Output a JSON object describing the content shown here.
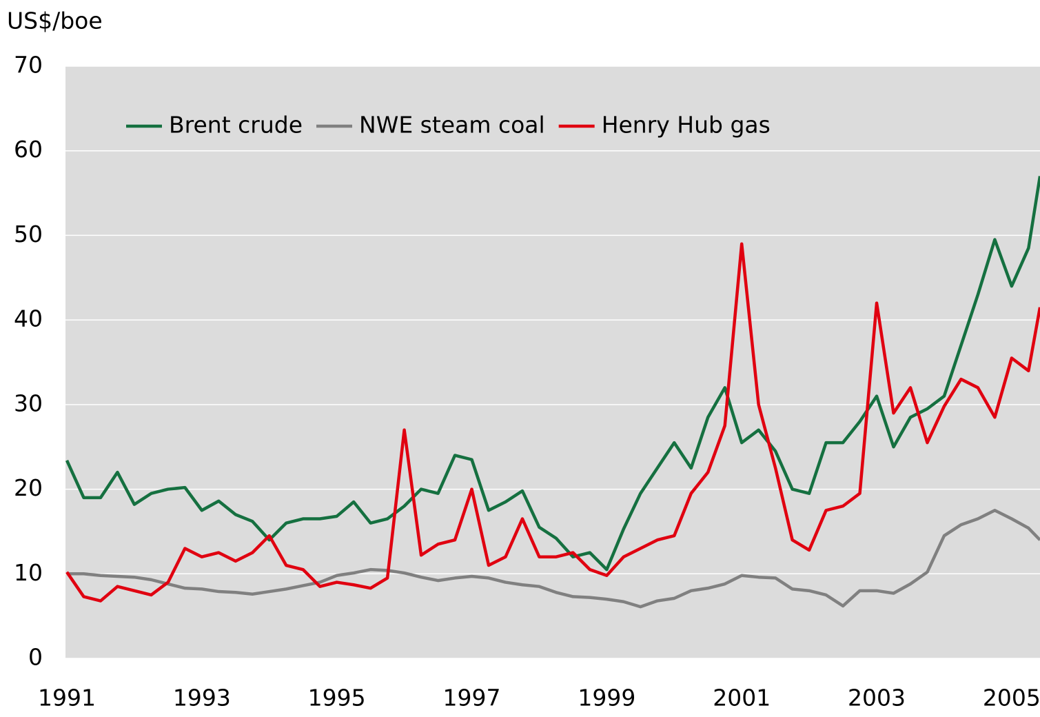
{
  "chart_data": {
    "type": "line",
    "y_label": "US$/boe",
    "x": [
      1991,
      1991.25,
      1991.5,
      1991.75,
      1992,
      1992.25,
      1992.5,
      1992.75,
      1993,
      1993.25,
      1993.5,
      1993.75,
      1994,
      1994.25,
      1994.5,
      1994.75,
      1995,
      1995.25,
      1995.5,
      1995.75,
      1996,
      1996.25,
      1996.5,
      1996.75,
      1997,
      1997.25,
      1997.5,
      1997.75,
      1998,
      1998.25,
      1998.5,
      1998.75,
      1999,
      1999.25,
      1999.5,
      1999.75,
      2000,
      2000.25,
      2000.5,
      2000.75,
      2001,
      2001.25,
      2001.5,
      2001.75,
      2002,
      2002.25,
      2002.5,
      2002.75,
      2003,
      2003.25,
      2003.5,
      2003.75,
      2004,
      2004.25,
      2004.5,
      2004.75,
      2005,
      2005.25,
      2005.42
    ],
    "series": [
      {
        "name": "Brent crude",
        "color": "#157040",
        "values": [
          23.4,
          19,
          19,
          22,
          18.2,
          19.5,
          20,
          20.2,
          17.5,
          18.6,
          17,
          16.2,
          14,
          16,
          16.5,
          16.5,
          16.8,
          18.5,
          16,
          16.5,
          18,
          20,
          19.5,
          24,
          23.5,
          17.5,
          18.5,
          19.8,
          15.5,
          14.2,
          12,
          12.5,
          10.5,
          15.3,
          19.5,
          22.5,
          25.5,
          22.5,
          28.5,
          32,
          25.5,
          27,
          24.5,
          20,
          19.5,
          25.5,
          25.5,
          28,
          31,
          25,
          28.5,
          29.5,
          31,
          37,
          43,
          49.5,
          44,
          48.5,
          57
        ]
      },
      {
        "name": "NWE steam coal",
        "color": "#808080",
        "values": [
          10,
          10,
          9.8,
          9.7,
          9.6,
          9.3,
          8.8,
          8.3,
          8.2,
          7.9,
          7.8,
          7.6,
          7.9,
          8.2,
          8.6,
          9,
          9.8,
          10.1,
          10.5,
          10.4,
          10.1,
          9.6,
          9.2,
          9.5,
          9.7,
          9.5,
          9,
          8.7,
          8.5,
          7.8,
          7.3,
          7.2,
          7,
          6.7,
          6.1,
          6.8,
          7.1,
          8,
          8.3,
          8.8,
          9.8,
          9.6,
          9.5,
          8.2,
          8,
          7.5,
          6.2,
          8,
          8,
          7.7,
          8.8,
          10.2,
          14.5,
          15.8,
          16.5,
          17.5,
          16.5,
          15.4,
          14
        ]
      },
      {
        "name": "Henry Hub gas",
        "color": "#e00010",
        "values": [
          10.2,
          7.3,
          6.8,
          8.5,
          8,
          7.5,
          9,
          13,
          12,
          12.5,
          11.5,
          12.5,
          14.5,
          11,
          10.5,
          8.5,
          9,
          8.7,
          8.3,
          9.5,
          27,
          12.2,
          13.5,
          14,
          20,
          11,
          12,
          16.5,
          12,
          12,
          12.5,
          10.5,
          9.8,
          12,
          13,
          14,
          14.5,
          19.5,
          22,
          27.5,
          49,
          30,
          22.5,
          14,
          12.8,
          17.5,
          18,
          19.5,
          42,
          29,
          32,
          25.5,
          29.8,
          33,
          32,
          28.5,
          35.5,
          34,
          41.5
        ]
      }
    ],
    "xlim": [
      1991,
      2005.42
    ],
    "xticks": [
      1991,
      1993,
      1995,
      1997,
      1999,
      2001,
      2003,
      2005
    ],
    "ylim": [
      0,
      70
    ],
    "yticks": [
      0,
      10,
      20,
      30,
      40,
      50,
      60,
      70
    ],
    "grid": true,
    "legend": "top-left"
  }
}
